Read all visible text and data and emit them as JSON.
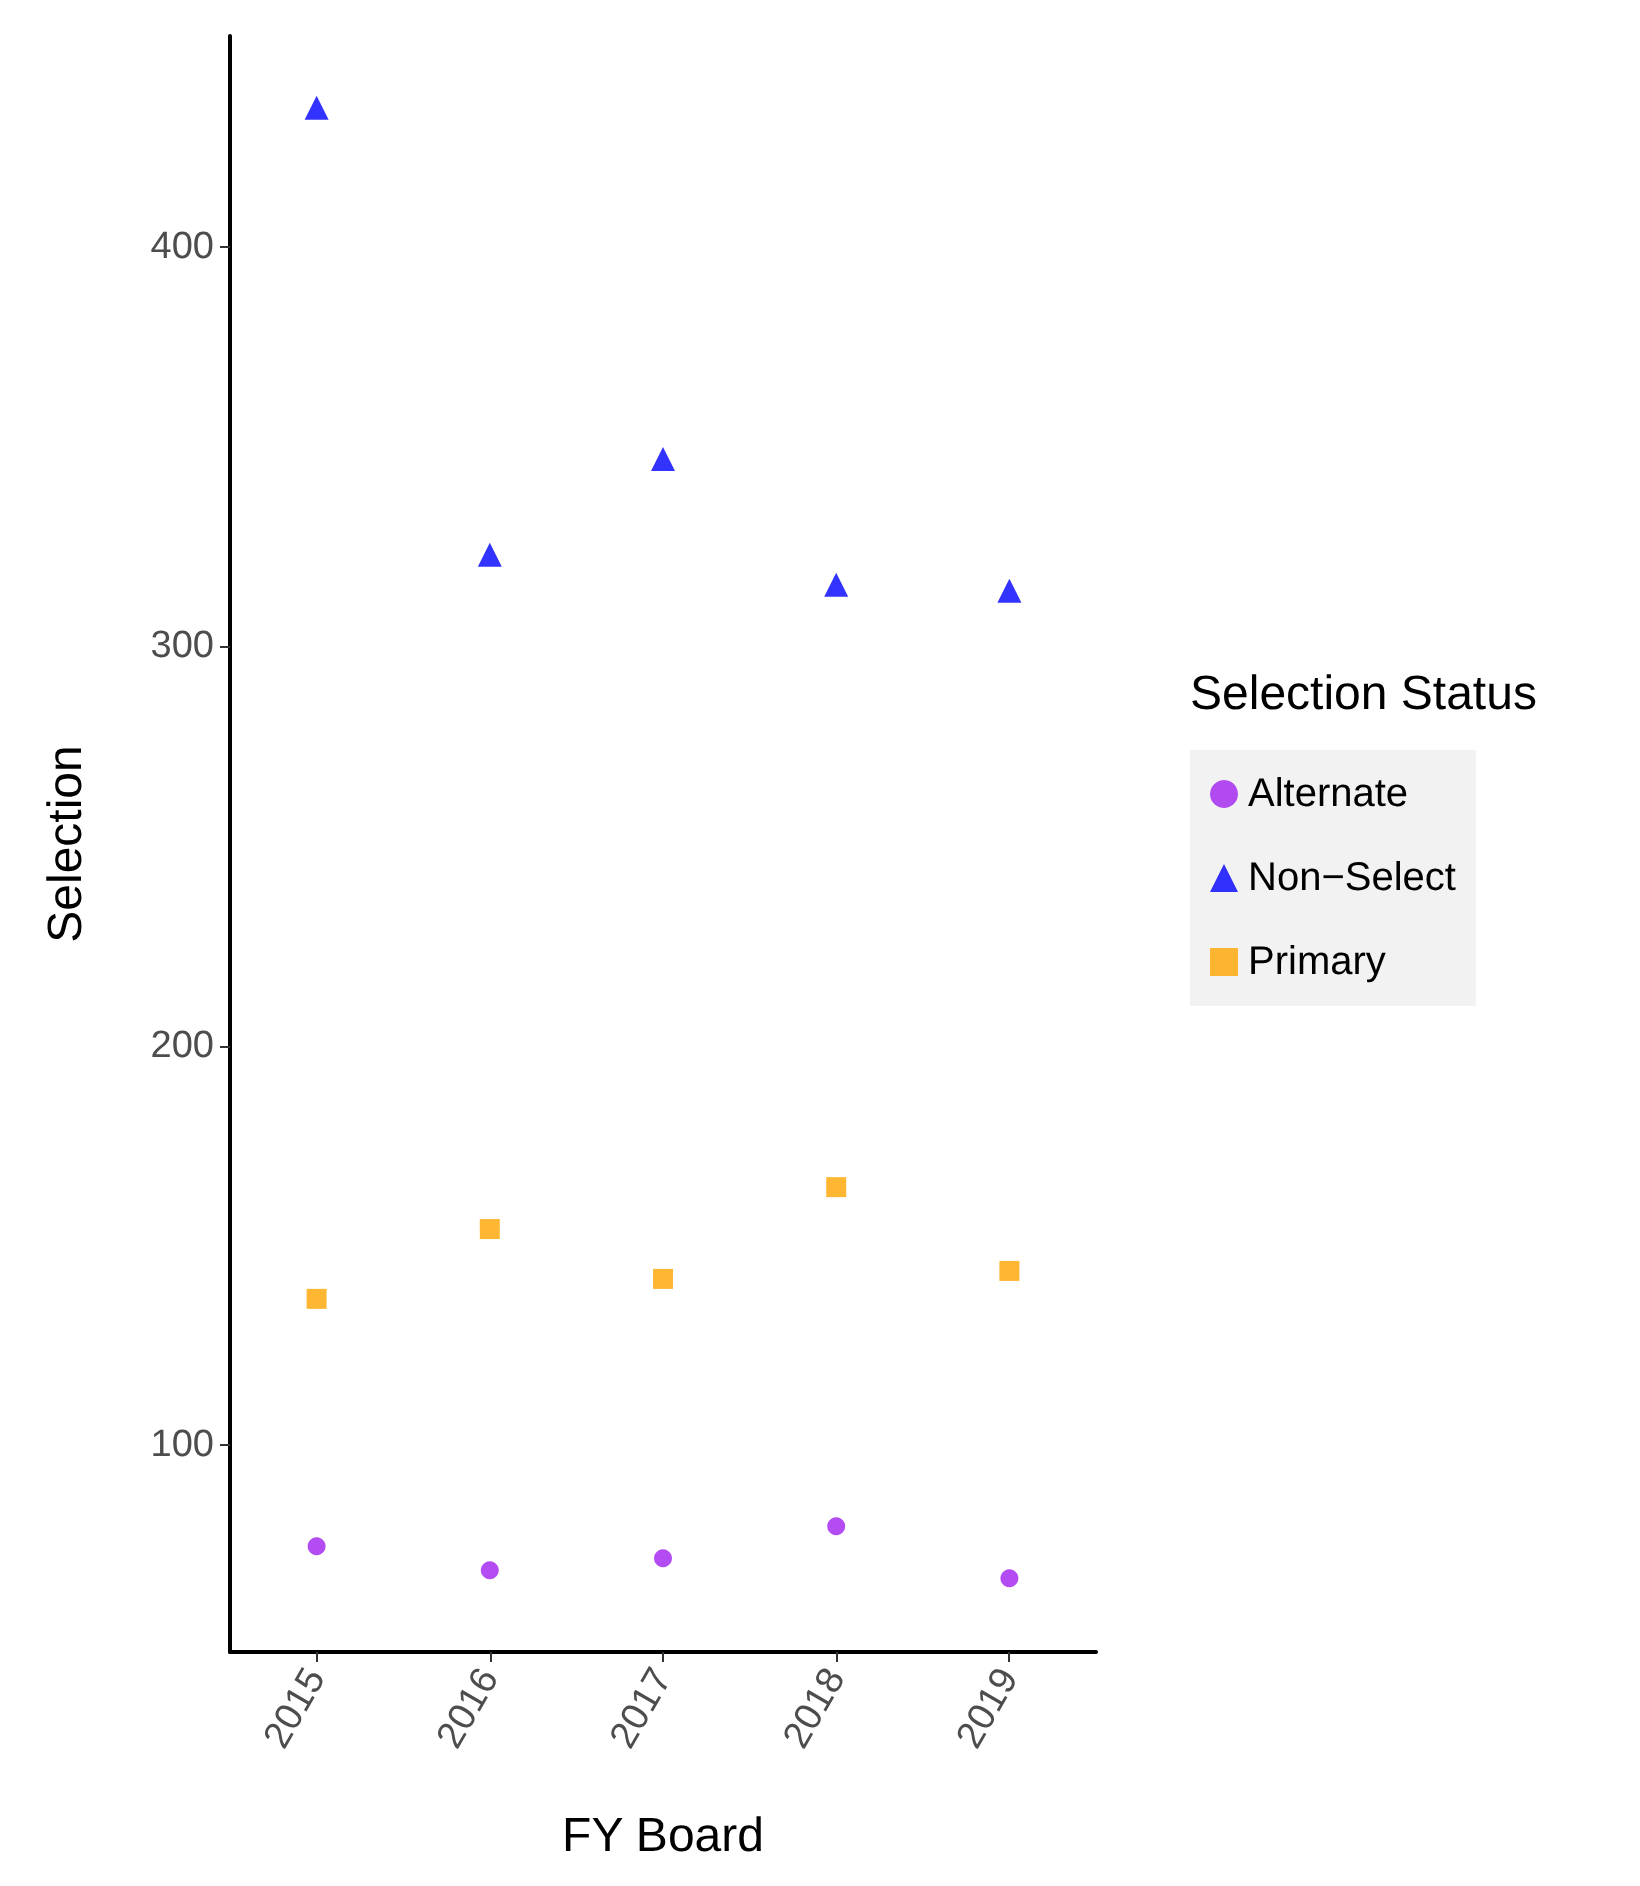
{
  "chart_data": {
    "type": "scatter",
    "xlabel": "FY Board",
    "ylabel": "Selection",
    "legend_title": "Selection Status",
    "legend": "right",
    "grid": false,
    "categories": [
      "2015",
      "2016",
      "2017",
      "2018",
      "2019"
    ],
    "ylim": [
      48,
      453
    ],
    "yticks": [
      100,
      200,
      300,
      400
    ],
    "series": [
      {
        "name": "Alternate",
        "color": "#a020f0",
        "marker": "circle",
        "values": [
          74.5,
          68.5,
          71.5,
          79.5,
          66.5
        ]
      },
      {
        "name": "Non−Select",
        "color": "#0000ff",
        "marker": "triangle",
        "values": [
          435,
          323,
          347,
          315.5,
          314
        ]
      },
      {
        "name": "Primary",
        "color": "#ffa500",
        "marker": "square",
        "values": [
          136.5,
          154,
          141.5,
          164.5,
          143.5
        ]
      }
    ]
  }
}
